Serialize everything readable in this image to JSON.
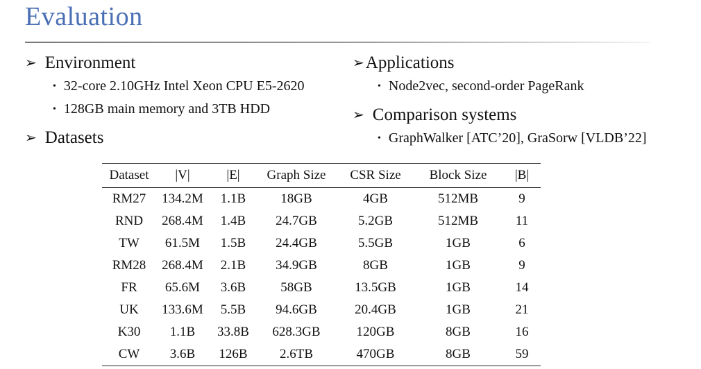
{
  "slide": {
    "title": "Evaluation",
    "title_color": "#4a6fb5"
  },
  "left": {
    "environment": {
      "heading": "Environment",
      "items": [
        "32-core 2.10GHz Intel Xeon CPU E5-2620",
        "128GB main memory and 3TB HDD"
      ]
    },
    "datasets": {
      "heading": "Datasets"
    }
  },
  "right": {
    "applications": {
      "heading": "Applications",
      "items": [
        "Node2vec, second-order PageRank"
      ]
    },
    "comparison": {
      "heading": "Comparison systems",
      "items": [
        "GraphWalker [ATC’20], GraSorw [VLDB’22]"
      ]
    }
  },
  "table": {
    "headers": [
      "Dataset",
      "|V|",
      "|E|",
      "Graph Size",
      "CSR Size",
      "Block Size",
      "|B|"
    ],
    "rows": [
      [
        "RM27",
        "134.2M",
        "1.1B",
        "18GB",
        "4GB",
        "512MB",
        "9"
      ],
      [
        "RND",
        "268.4M",
        "1.4B",
        "24.7GB",
        "5.2GB",
        "512MB",
        "11"
      ],
      [
        "TW",
        "61.5M",
        "1.5B",
        "24.4GB",
        "5.5GB",
        "1GB",
        "6"
      ],
      [
        "RM28",
        "268.4M",
        "2.1B",
        "34.9GB",
        "8GB",
        "1GB",
        "9"
      ],
      [
        "FR",
        "65.6M",
        "3.6B",
        "58GB",
        "13.5GB",
        "1GB",
        "14"
      ],
      [
        "UK",
        "133.6M",
        "5.5B",
        "94.6GB",
        "20.4GB",
        "1GB",
        "21"
      ],
      [
        "K30",
        "1.1B",
        "33.8B",
        "628.3GB",
        "120GB",
        "8GB",
        "16"
      ],
      [
        "CW",
        "3.6B",
        "126B",
        "2.6TB",
        "470GB",
        "8GB",
        "59"
      ]
    ]
  }
}
